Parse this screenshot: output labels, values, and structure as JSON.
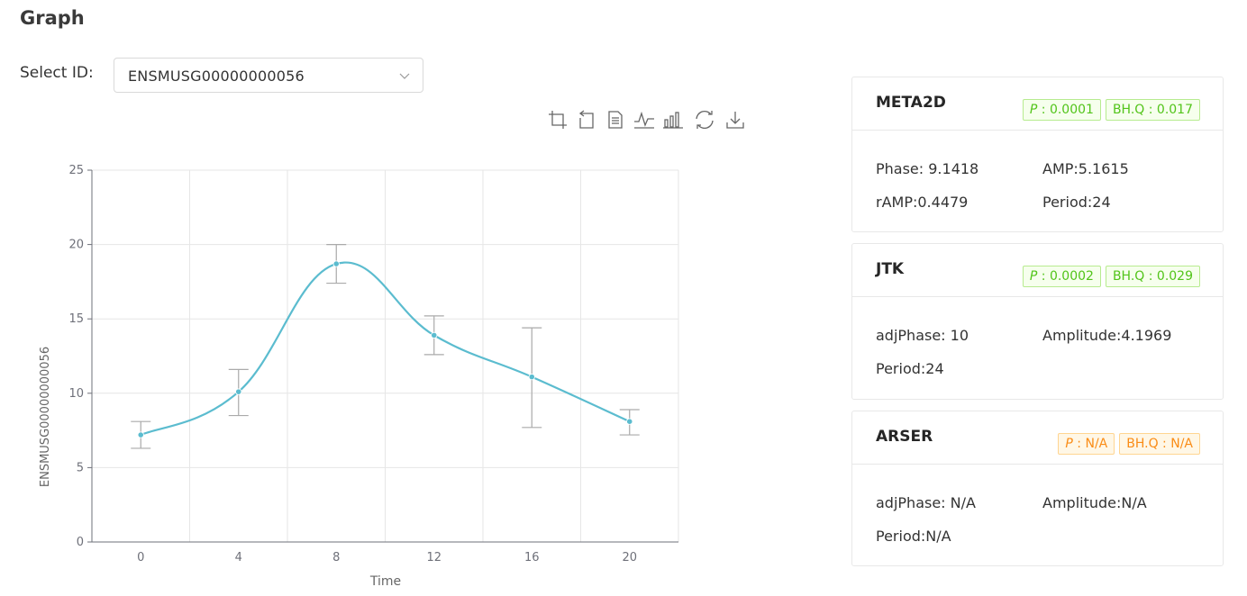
{
  "header": {
    "title": "Graph"
  },
  "select": {
    "label": "Select ID:",
    "value": "ENSMUSG00000000056"
  },
  "toolbox": {
    "tools": [
      {
        "name": "zoom-icon"
      },
      {
        "name": "zoom-reset-icon"
      },
      {
        "name": "data-view-icon"
      },
      {
        "name": "line-chart-icon"
      },
      {
        "name": "bar-chart-icon"
      },
      {
        "name": "restore-icon"
      },
      {
        "name": "download-icon"
      }
    ]
  },
  "colors": {
    "line": "#5bbccf",
    "errorbar": "#aaaaaa",
    "green": "#52c41a",
    "orange": "#fa8c16"
  },
  "chart_data": {
    "type": "line",
    "smooth": true,
    "xlabel": "Time",
    "ylabel": "ENSMUSG00000000056",
    "x": [
      0,
      4,
      8,
      12,
      16,
      20
    ],
    "x_ticks": [
      "0",
      "4",
      "8",
      "12",
      "16",
      "20"
    ],
    "xlim": [
      -2,
      22
    ],
    "ylim": [
      0,
      25
    ],
    "y_ticks": [
      "0",
      "5",
      "10",
      "15",
      "20",
      "25"
    ],
    "y_tick_values": [
      0,
      5,
      10,
      15,
      20,
      25
    ],
    "grid": true,
    "series": [
      {
        "values": [
          7.2,
          10.1,
          18.7,
          13.9,
          11.1,
          8.1
        ],
        "error_low": [
          6.3,
          8.5,
          17.4,
          12.6,
          7.7,
          7.2
        ],
        "error_high": [
          8.1,
          11.6,
          20.0,
          15.2,
          14.4,
          8.9
        ]
      }
    ]
  },
  "cards": [
    {
      "title": "META2D",
      "tags": [
        {
          "key": "P",
          "value": " : 0.0001",
          "color": "green"
        },
        {
          "text": "BH.Q : 0.017",
          "color": "green"
        }
      ],
      "stats": [
        "Phase: 9.1418",
        "AMP:5.1615",
        "rAMP:0.4479",
        "Period:24"
      ]
    },
    {
      "title": "JTK",
      "tags": [
        {
          "key": "P",
          "value": " : 0.0002",
          "color": "green"
        },
        {
          "text": "BH.Q : 0.029",
          "color": "green"
        }
      ],
      "stats": [
        "adjPhase: 10",
        "Amplitude:4.1969",
        "Period:24"
      ]
    },
    {
      "title": "ARSER",
      "tags": [
        {
          "key": "P",
          "value": " : N/A",
          "color": "orange"
        },
        {
          "text": "BH.Q : N/A",
          "color": "orange"
        }
      ],
      "stats": [
        "adjPhase: N/A",
        "Amplitude:N/A",
        "Period:N/A"
      ]
    }
  ]
}
